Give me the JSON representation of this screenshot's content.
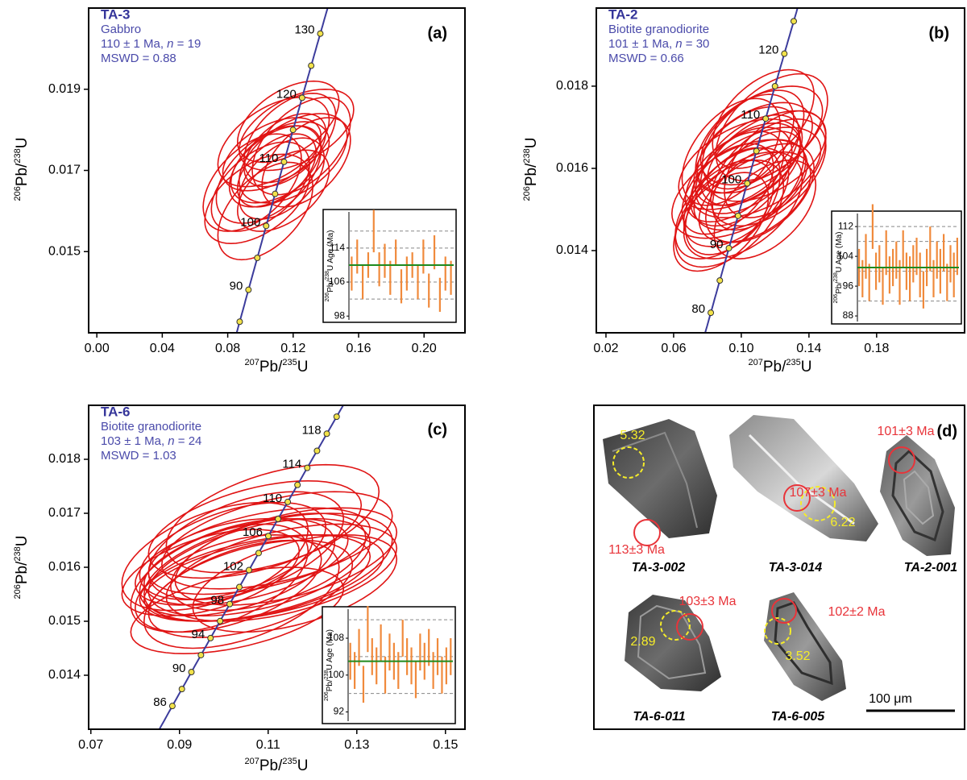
{
  "chart_data": [
    {
      "type": "concordia",
      "panel_label": "(a)",
      "title": "TA-3",
      "info": {
        "rock": "Gabbro",
        "age": "110 ± 1 Ma, ",
        "n_symbol": "n",
        "n": " = 19",
        "mswd": "MSWD = 0.88"
      },
      "x_label": [
        "207",
        "Pb/",
        "235",
        "U"
      ],
      "y_label": [
        "206",
        "Pb/",
        "238",
        "U"
      ],
      "xlim": [
        -0.005,
        0.225
      ],
      "xticks": [
        {
          "value": 0,
          "label": "0.00"
        },
        0.04,
        0.08,
        0.12,
        0.16,
        {
          "value": 0.2,
          "label": "0.20"
        }
      ],
      "ylim": [
        0.013,
        0.021
      ],
      "yticks": [
        0.015,
        0.017,
        0.019
      ],
      "concordia": {
        "ages": [
          85,
          90,
          95,
          100,
          105,
          110,
          115,
          120,
          125,
          130
        ],
        "labels": [
          90,
          100,
          110,
          120,
          130
        ],
        "color": "#3c3c9c",
        "marker_color": "#f2e24a"
      },
      "error_correlation": 0.5,
      "ellipses": {
        "color": "#e01414",
        "x": [
          0.112,
          0.118,
          0.105,
          0.122,
          0.1,
          0.115,
          0.109,
          0.125,
          0.098,
          0.113,
          0.12,
          0.107,
          0.103,
          0.117,
          0.11,
          0.128,
          0.095,
          0.114,
          0.108
        ],
        "y": [
          0.0172,
          0.0178,
          0.0169,
          0.018,
          0.0166,
          0.0175,
          0.0171,
          0.0176,
          0.0163,
          0.0168,
          0.0173,
          0.0174,
          0.016,
          0.0182,
          0.017,
          0.0172,
          0.0167,
          0.0165,
          0.0177
        ],
        "x_err": [
          0.03,
          0.028,
          0.032,
          0.035,
          0.03,
          0.025,
          0.028,
          0.03,
          0.032,
          0.026,
          0.033,
          0.03,
          0.029,
          0.031,
          0.024,
          0.027,
          0.03,
          0.028,
          0.034
        ],
        "y_err": [
          0.001,
          0.0011,
          0.0012,
          0.001,
          0.0011,
          0.0009,
          0.001,
          0.0012,
          0.0011,
          0.001,
          0.0011,
          0.0009,
          0.0012,
          0.001,
          0.0009,
          0.0011,
          0.0012,
          0.001,
          0.0011
        ]
      },
      "inset": {
        "y_label": [
          "206",
          "Pb/",
          "238",
          "U Age (Ma)"
        ],
        "ylim": [
          97.1,
          122.5
        ],
        "yticks": [
          98,
          106,
          114
        ],
        "gridlines": [
          102,
          106,
          114,
          118
        ],
        "values": [
          108,
          112,
          106,
          110,
          118,
          109,
          111,
          107,
          113,
          105,
          108,
          110,
          106,
          112,
          104,
          113,
          103,
          108,
          107
        ],
        "errors": [
          4,
          4,
          4,
          3,
          5,
          4,
          4,
          4,
          3,
          4,
          4,
          3,
          4,
          4,
          4,
          4,
          4,
          4,
          4
        ],
        "mean": 110,
        "bar_color": "#f08a3c",
        "mean_color": "#1f8a1f"
      }
    },
    {
      "type": "concordia",
      "panel_label": "(b)",
      "title": "TA-2",
      "info": {
        "rock": "Biotite granodiorite",
        "age": "101 ± 1 Ma, ",
        "n_symbol": "n",
        "n": " = 30",
        "mswd": "MSWD = 0.66"
      },
      "x_label": [
        "207",
        "Pb/",
        "235",
        "U"
      ],
      "y_label": [
        "206",
        "Pb/",
        "238",
        "U"
      ],
      "xlim": [
        0.0143,
        0.232
      ],
      "xticks": [
        0.02,
        0.06,
        {
          "value": 0.1,
          "label": "0.10"
        },
        0.14,
        0.18
      ],
      "ylim": [
        0.012,
        0.0199
      ],
      "yticks": [
        0.014,
        0.016,
        0.018
      ],
      "concordia": {
        "ages": [
          80,
          85,
          90,
          95,
          100,
          105,
          110,
          115,
          120,
          125
        ],
        "labels": [
          80,
          90,
          100,
          110,
          120
        ],
        "color": "#3c3c9c",
        "marker_color": "#f2e24a"
      },
      "error_correlation": 0.5,
      "ellipses": {
        "color": "#e01414",
        "x": [
          0.1,
          0.108,
          0.095,
          0.112,
          0.104,
          0.09,
          0.118,
          0.099,
          0.106,
          0.11,
          0.093,
          0.115,
          0.102,
          0.097,
          0.109,
          0.12,
          0.088,
          0.105,
          0.113,
          0.101,
          0.096,
          0.111,
          0.107,
          0.092,
          0.116,
          0.103,
          0.099,
          0.114,
          0.094,
          0.108
        ],
        "y": [
          0.0158,
          0.0165,
          0.0152,
          0.0168,
          0.016,
          0.015,
          0.017,
          0.0155,
          0.0162,
          0.0157,
          0.0149,
          0.0163,
          0.0166,
          0.0153,
          0.0159,
          0.0161,
          0.0147,
          0.0156,
          0.0172,
          0.0151,
          0.0158,
          0.0154,
          0.0167,
          0.0155,
          0.0159,
          0.0163,
          0.0161,
          0.015,
          0.0164,
          0.0153
        ],
        "x_err": [
          0.03,
          0.034,
          0.028,
          0.036,
          0.031,
          0.029,
          0.033,
          0.04,
          0.03,
          0.027,
          0.032,
          0.035,
          0.029,
          0.031,
          0.038,
          0.03,
          0.028,
          0.033,
          0.03,
          0.035,
          0.029,
          0.032,
          0.03,
          0.027,
          0.034,
          0.031,
          0.036,
          0.03,
          0.029,
          0.033
        ],
        "y_err": [
          0.0012,
          0.0011,
          0.0013,
          0.0012,
          0.0011,
          0.0012,
          0.0013,
          0.0012,
          0.0011,
          0.0012,
          0.0013,
          0.0011,
          0.0012,
          0.0012,
          0.0011,
          0.0013,
          0.0012,
          0.0011,
          0.0012,
          0.0013,
          0.0011,
          0.0012,
          0.0012,
          0.0011,
          0.0013,
          0.0012,
          0.0011,
          0.0012,
          0.0013,
          0.0011
        ]
      },
      "inset": {
        "y_label": [
          "206",
          "Pb/",
          "238",
          "U Age (Ma)"
        ],
        "ylim": [
          86.5,
          115.5
        ],
        "yticks": [
          88,
          96,
          104,
          112
        ],
        "gridlines": [
          92,
          100,
          108,
          112
        ],
        "values": [
          101,
          98,
          104,
          97,
          112,
          100,
          102,
          96,
          105,
          99,
          101,
          103,
          97,
          106,
          100,
          98,
          102,
          104,
          99,
          95,
          101,
          106,
          98,
          103,
          100,
          105,
          97,
          102,
          99,
          104
        ],
        "errors": [
          5,
          5,
          6,
          5,
          6,
          5,
          5,
          5,
          6,
          5,
          5,
          5,
          6,
          5,
          5,
          6,
          5,
          5,
          6,
          5,
          5,
          6,
          5,
          5,
          6,
          5,
          5,
          5,
          6,
          5
        ],
        "mean": 101,
        "bar_color": "#f08a3c",
        "mean_color": "#1f8a1f"
      }
    },
    {
      "type": "concordia",
      "panel_label": "(c)",
      "title": "TA-6",
      "info": {
        "rock": "Biotite granodiorite",
        "age": "103 ± 1 Ma, ",
        "n_symbol": "n",
        "n": " = 24",
        "mswd": "MSWD = 1.03"
      },
      "x_label": [
        "207",
        "Pb/",
        "235",
        "U"
      ],
      "y_label": [
        "206",
        "Pb/",
        "238",
        "U"
      ],
      "xlim": [
        0.0695,
        0.1544
      ],
      "xticks": [
        0.07,
        0.09,
        0.11,
        0.13,
        0.15
      ],
      "ylim": [
        0.013,
        0.019
      ],
      "yticks": [
        0.014,
        0.015,
        0.016,
        0.017,
        0.018
      ],
      "concordia": {
        "ages": [
          86,
          88,
          90,
          92,
          94,
          96,
          98,
          100,
          102,
          104,
          106,
          108,
          110,
          112,
          114,
          116,
          118,
          120
        ],
        "labels": [
          86,
          90,
          94,
          98,
          102,
          106,
          110,
          114,
          118
        ],
        "color": "#3c3c9c",
        "marker_color": "#f2e24a"
      },
      "error_correlation": 0.5,
      "ellipses": {
        "color": "#e01414",
        "x": [
          0.103,
          0.108,
          0.099,
          0.112,
          0.105,
          0.101,
          0.11,
          0.107,
          0.097,
          0.114,
          0.104,
          0.109,
          0.102,
          0.111,
          0.106,
          0.1,
          0.113,
          0.105,
          0.108,
          0.103,
          0.116,
          0.098,
          0.107,
          0.11
        ],
        "y": [
          0.016,
          0.0163,
          0.0158,
          0.0165,
          0.0161,
          0.0157,
          0.016,
          0.0167,
          0.0159,
          0.0162,
          0.0155,
          0.0158,
          0.0163,
          0.0169,
          0.0156,
          0.0161,
          0.0159,
          0.0164,
          0.016,
          0.0152,
          0.0157,
          0.0162,
          0.0158,
          0.0161
        ],
        "x_err": [
          0.022,
          0.025,
          0.02,
          0.026,
          0.023,
          0.021,
          0.028,
          0.024,
          0.02,
          0.025,
          0.022,
          0.027,
          0.021,
          0.024,
          0.023,
          0.02,
          0.026,
          0.022,
          0.025,
          0.024,
          0.023,
          0.021,
          0.026,
          0.022
        ],
        "y_err": [
          0.0009,
          0.0008,
          0.001,
          0.0009,
          0.0008,
          0.0009,
          0.001,
          0.0009,
          0.0008,
          0.0009,
          0.001,
          0.0008,
          0.0009,
          0.001,
          0.0009,
          0.0008,
          0.0009,
          0.001,
          0.0009,
          0.0008,
          0.0009,
          0.001,
          0.0008,
          0.0009
        ]
      },
      "inset": {
        "y_label": [
          "206",
          "Pb/",
          "238",
          "U Age (Ma)"
        ],
        "ylim": [
          90,
          114.3
        ],
        "yticks": [
          92,
          100,
          108
        ],
        "gridlines": [
          96,
          104,
          112
        ],
        "values": [
          103,
          101,
          106,
          98,
          110,
          104,
          102,
          107,
          100,
          105,
          103,
          101,
          108,
          104,
          102,
          99,
          105,
          103,
          106,
          101,
          104,
          100,
          102,
          104
        ],
        "errors": [
          4,
          4,
          4,
          4,
          5,
          4,
          4,
          4,
          4,
          4,
          4,
          4,
          4,
          4,
          4,
          4,
          4,
          4,
          4,
          4,
          4,
          4,
          4,
          4
        ],
        "mean": 103,
        "bar_color": "#f08a3c",
        "mean_color": "#1f8a1f"
      }
    }
  ],
  "zircon_panel": {
    "label": "(d)",
    "grains": [
      {
        "name": "TA-3-002",
        "spot_ages": [
          "113±3 Ma"
        ],
        "hf_values": [
          "5.32"
        ]
      },
      {
        "name": "TA-3-014",
        "spot_ages": [
          "107±3 Ma"
        ],
        "hf_values": [
          "6.22"
        ]
      },
      {
        "name": "TA-2-001",
        "spot_ages": [
          "101±3 Ma"
        ],
        "hf_values": []
      },
      {
        "name": "TA-6-005",
        "spot_ages": [
          "103±3 Ma"
        ],
        "hf_values": [
          "2.89"
        ]
      },
      {
        "name": "TA-6-011",
        "spot_ages": [
          "102±2 Ma"
        ],
        "hf_values": [
          "3.52"
        ]
      }
    ],
    "scale_bar": "100 μm"
  }
}
